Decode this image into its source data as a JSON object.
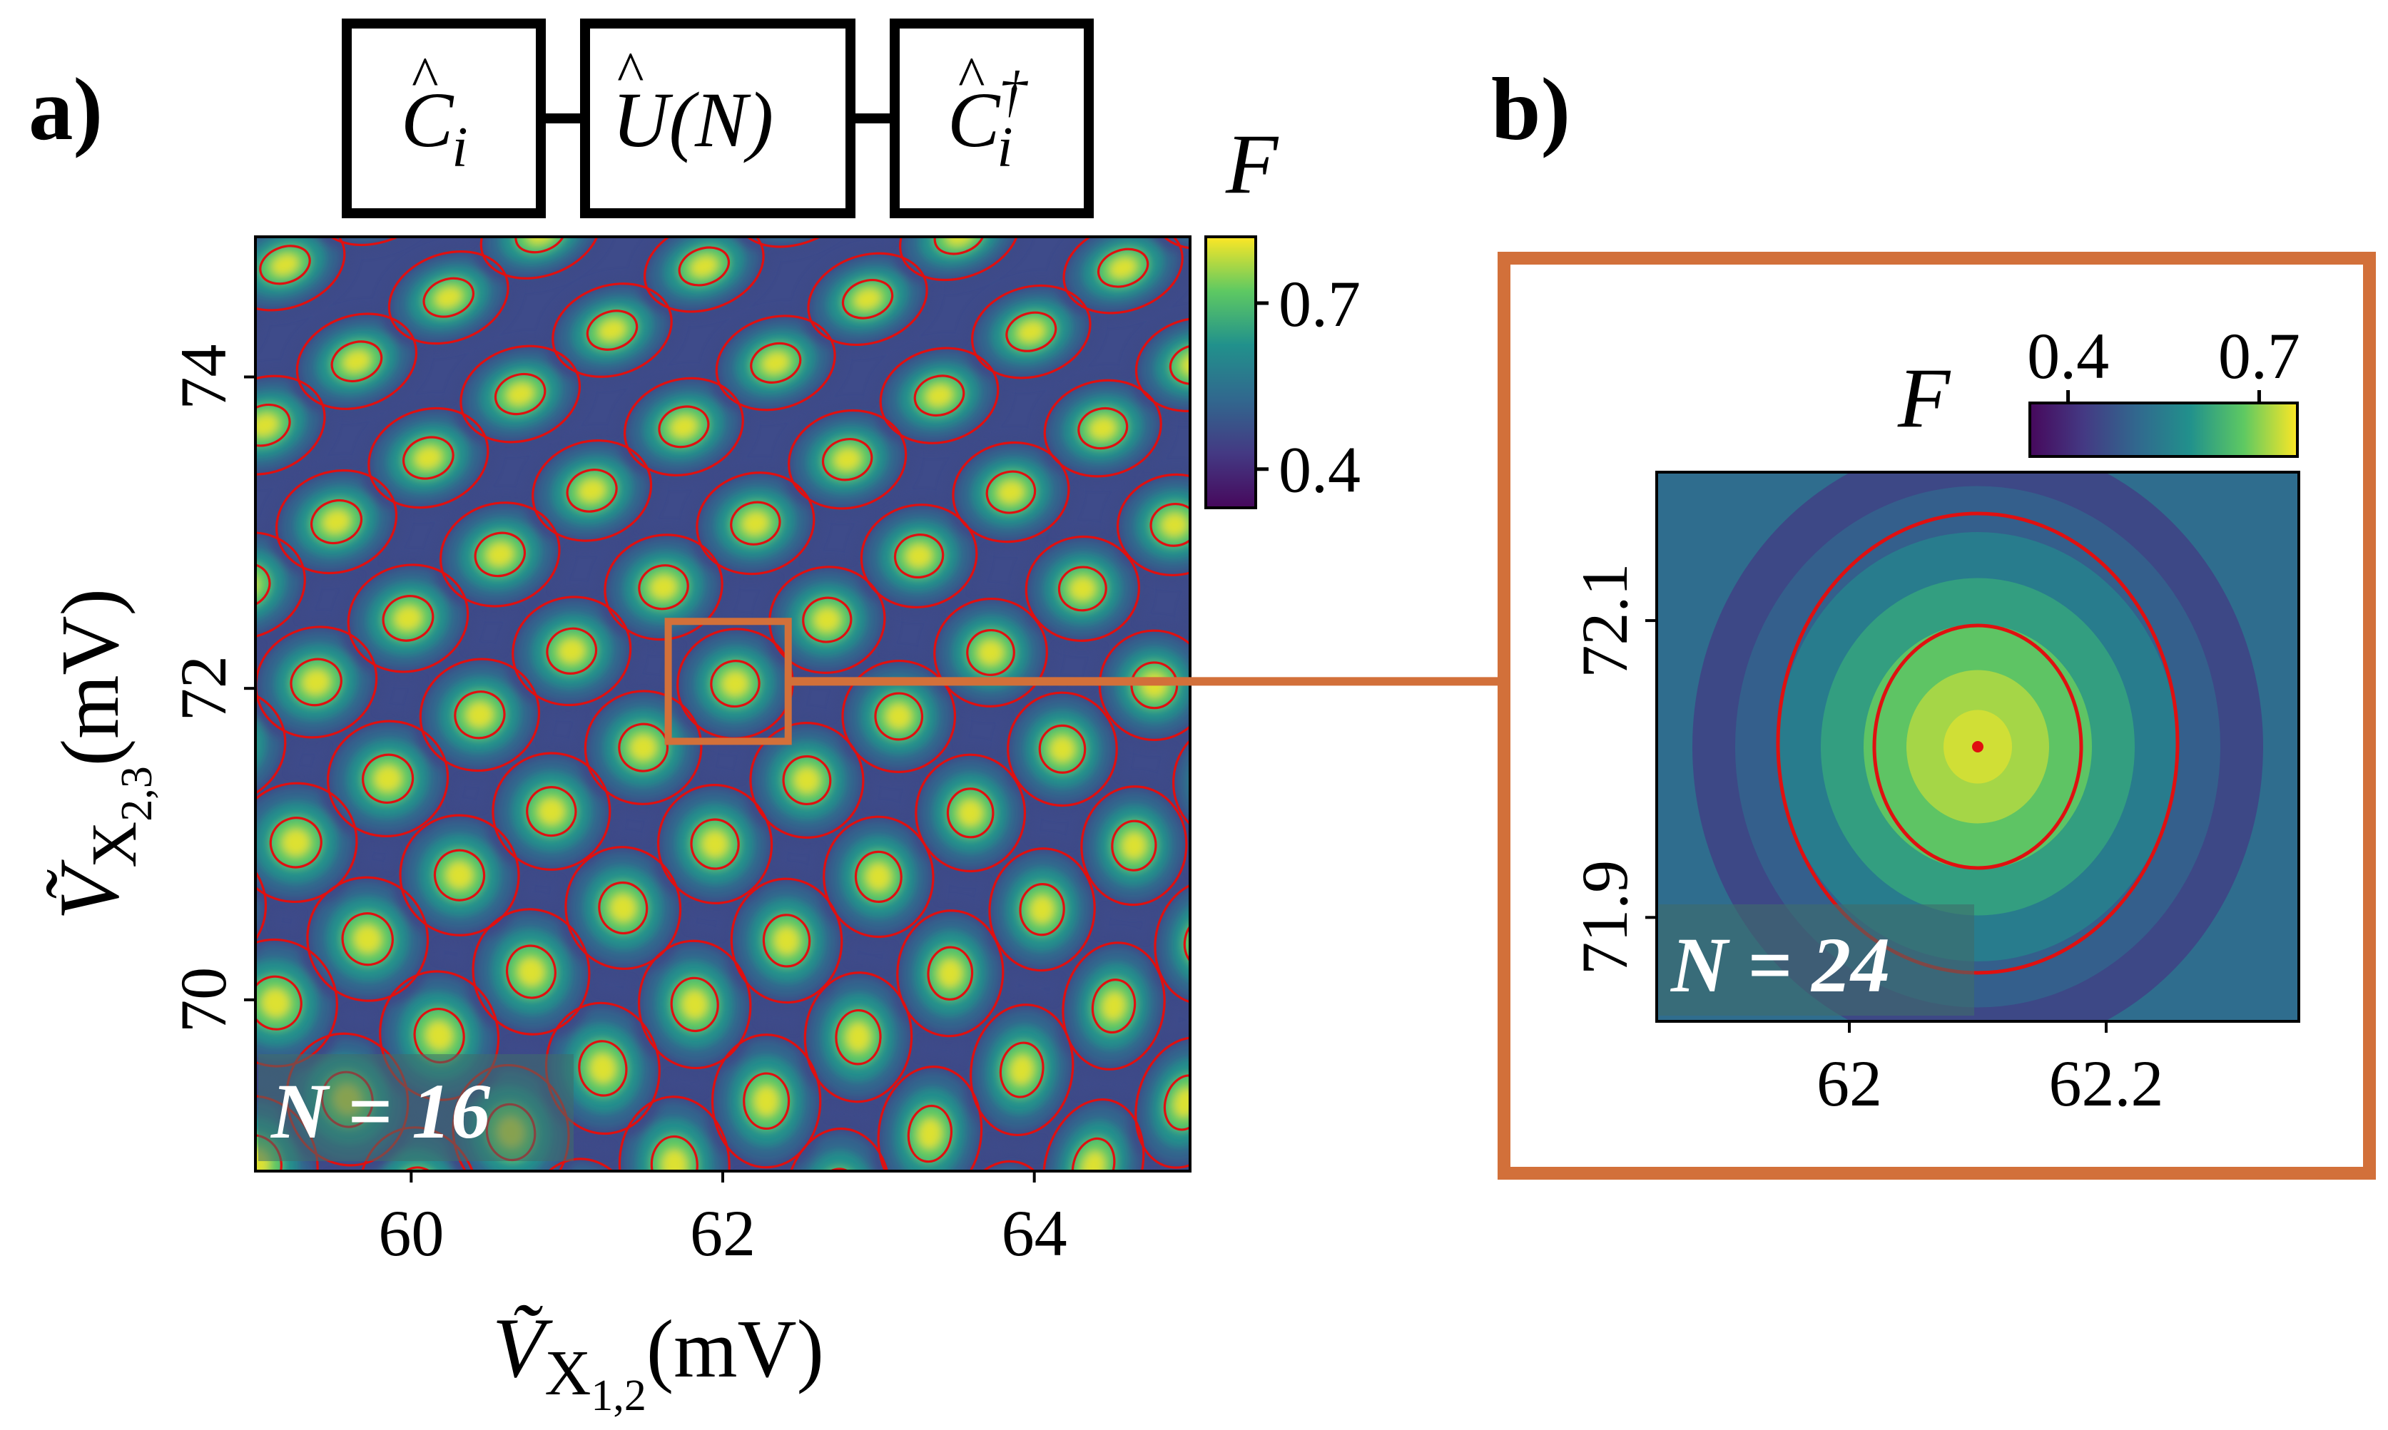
{
  "panel_a": {
    "label": "a)",
    "circuit": {
      "boxes": [
        "C",
        "U(N)",
        "C"
      ],
      "box1_sub": "i",
      "box3_sub": "i",
      "box3_sup": "†"
    },
    "overlay_text": "N = 16",
    "xlabel": "Ṽ",
    "xlabel_sub": "X",
    "xlabel_subsub": "1,2",
    "xlabel_unit": "(mV)",
    "ylabel": "Ṽ",
    "ylabel_sub": "X",
    "ylabel_subsub": "2,3",
    "ylabel_unit": "(mV)",
    "colorbar_label": "F"
  },
  "panel_b": {
    "label": "b)",
    "overlay_text": "N = 24",
    "colorbar_label": "F"
  },
  "colors": {
    "inset_frame": "#d2703a",
    "contour": "#e01010",
    "viridis_low": "#440154",
    "viridis_high": "#fde725"
  },
  "chart_data": [
    {
      "type": "heatmap",
      "title": "",
      "xlabel": "Ṽ_{X_{1,2}} (mV)",
      "ylabel": "Ṽ_{X_{2,3}} (mV)",
      "xlim": [
        59.0,
        65.0
      ],
      "ylim": [
        68.9,
        74.9
      ],
      "xticks": [
        60,
        62,
        64
      ],
      "xtick_labels": [
        "60",
        "62",
        "64"
      ],
      "yticks": [
        70,
        72,
        74
      ],
      "ytick_labels": [
        "70",
        "72",
        "74"
      ],
      "colorbar": {
        "label": "F",
        "range": [
          0.33,
          0.82
        ],
        "ticks": [
          0.4,
          0.7
        ],
        "tick_labels": [
          "0.4",
          "0.7"
        ],
        "orientation": "vertical",
        "colormap": "viridis"
      },
      "annotation": "N = 16",
      "peak_value": 0.8,
      "background_value": 0.34,
      "lattice": {
        "origin": [
          62.08,
          72.03
        ],
        "a1": [
          0.59,
          0.41
        ],
        "a2": [
          -0.46,
          0.62
        ]
      },
      "inset_region": {
        "x": [
          61.65,
          62.42
        ],
        "y": [
          71.66,
          72.43
        ]
      },
      "contour_levels": [
        0.45,
        0.7
      ]
    },
    {
      "type": "heatmap",
      "title": "",
      "xlabel": "",
      "ylabel": "",
      "xlim": [
        61.85,
        62.35
      ],
      "ylim": [
        71.83,
        72.2
      ],
      "xticks": [
        62.0,
        62.2
      ],
      "xtick_labels": [
        "62",
        "62.2"
      ],
      "yticks": [
        71.9,
        72.1
      ],
      "ytick_labels": [
        "71.9",
        "72.1"
      ],
      "colorbar": {
        "label": "F",
        "range": [
          0.34,
          0.76
        ],
        "ticks": [
          0.4,
          0.7
        ],
        "tick_labels": [
          "0.4",
          "0.7"
        ],
        "orientation": "horizontal",
        "colormap": "viridis"
      },
      "annotation": "N = 24",
      "center": [
        62.1,
        72.015
      ],
      "peak_value": 0.74,
      "contour_levels": [
        0.5,
        0.68
      ]
    }
  ]
}
